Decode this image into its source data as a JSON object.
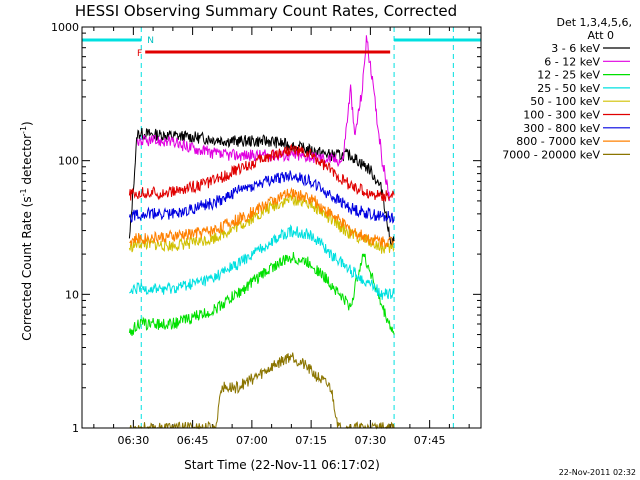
{
  "chart_data": {
    "type": "line",
    "title": "HESSI Observing Summary Count Rates, Corrected",
    "xlabel": "Start Time (22-Nov-11 06:17:02)",
    "ylabel_main": "Corrected Count Rate (s",
    "ylabel_sup1": "-1",
    "ylabel_mid": " detector",
    "ylabel_sup2": "-1",
    "ylabel_end": ")",
    "yscale": "log",
    "ylim": [
      1,
      1000
    ],
    "xlim": [
      "06:17",
      "07:58"
    ],
    "x_tick_labels": [
      "06:30",
      "06:45",
      "07:00",
      "07:15",
      "07:30",
      "07:45"
    ],
    "y_tick_labels": [
      "1",
      "10",
      "100",
      "1000"
    ],
    "legend_header": [
      "Det 1,3,4,5,6,",
      "Att 0"
    ],
    "footer_date": "22-Nov-2011 02:32",
    "markers": {
      "flare": "F",
      "night": "N"
    },
    "series": [
      {
        "name": "3 - 6 keV",
        "color": "#000000",
        "points": [
          [
            "06:29",
            25
          ],
          [
            "06:31",
            160
          ],
          [
            "06:45",
            150
          ],
          [
            "06:55",
            140
          ],
          [
            "07:05",
            140
          ],
          [
            "07:12",
            125
          ],
          [
            "07:20",
            110
          ],
          [
            "07:25",
            110
          ],
          [
            "07:30",
            85
          ],
          [
            "07:33",
            60
          ],
          [
            "07:35",
            25
          ],
          [
            "07:36",
            25
          ]
        ]
      },
      {
        "name": "6 - 12 keV",
        "color": "#e000e0",
        "points": [
          [
            "06:31",
            140
          ],
          [
            "06:38",
            140
          ],
          [
            "06:45",
            125
          ],
          [
            "06:52",
            110
          ],
          [
            "07:00",
            110
          ],
          [
            "07:10",
            110
          ],
          [
            "07:18",
            105
          ],
          [
            "07:23",
            100
          ],
          [
            "07:25",
            350
          ],
          [
            "07:26",
            150
          ],
          [
            "07:28",
            350
          ],
          [
            "07:29",
            850
          ],
          [
            "07:30",
            500
          ],
          [
            "07:31",
            300
          ],
          [
            "07:33",
            100
          ],
          [
            "07:35",
            50
          ]
        ]
      },
      {
        "name": "12 - 25 keV",
        "color": "#00e000",
        "points": [
          [
            "06:29",
            5
          ],
          [
            "06:31",
            6
          ],
          [
            "06:40",
            6
          ],
          [
            "06:50",
            7.5
          ],
          [
            "06:58",
            11
          ],
          [
            "07:05",
            16
          ],
          [
            "07:10",
            19
          ],
          [
            "07:15",
            17
          ],
          [
            "07:20",
            12
          ],
          [
            "07:25",
            8
          ],
          [
            "07:28",
            20
          ],
          [
            "07:30",
            15
          ],
          [
            "07:33",
            8
          ],
          [
            "07:36",
            5
          ]
        ]
      },
      {
        "name": "25 - 50 keV",
        "color": "#00e0e0",
        "points": [
          [
            "06:29",
            10
          ],
          [
            "06:31",
            11
          ],
          [
            "06:40",
            11
          ],
          [
            "06:50",
            13
          ],
          [
            "06:58",
            18
          ],
          [
            "07:05",
            25
          ],
          [
            "07:10",
            30
          ],
          [
            "07:15",
            28
          ],
          [
            "07:20",
            20
          ],
          [
            "07:25",
            15
          ],
          [
            "07:30",
            12
          ],
          [
            "07:33",
            10
          ],
          [
            "07:36",
            10
          ]
        ]
      },
      {
        "name": "50 - 100 keV",
        "color": "#d0c000",
        "points": [
          [
            "06:29",
            22
          ],
          [
            "06:31",
            24
          ],
          [
            "06:40",
            23
          ],
          [
            "06:50",
            26
          ],
          [
            "06:58",
            34
          ],
          [
            "07:05",
            45
          ],
          [
            "07:10",
            52
          ],
          [
            "07:15",
            48
          ],
          [
            "07:20",
            36
          ],
          [
            "07:25",
            28
          ],
          [
            "07:30",
            25
          ],
          [
            "07:33",
            22
          ],
          [
            "07:36",
            22
          ]
        ]
      },
      {
        "name": "100 - 300 keV",
        "color": "#e00000",
        "points": [
          [
            "06:29",
            55
          ],
          [
            "06:31",
            57
          ],
          [
            "06:40",
            58
          ],
          [
            "06:50",
            70
          ],
          [
            "06:58",
            90
          ],
          [
            "07:05",
            110
          ],
          [
            "07:10",
            122
          ],
          [
            "07:15",
            110
          ],
          [
            "07:20",
            85
          ],
          [
            "07:25",
            65
          ],
          [
            "07:30",
            56
          ],
          [
            "07:33",
            55
          ],
          [
            "07:36",
            55
          ]
        ]
      },
      {
        "name": "300 - 800 keV",
        "color": "#0000e0",
        "points": [
          [
            "06:29",
            38
          ],
          [
            "06:31",
            40
          ],
          [
            "06:40",
            40
          ],
          [
            "06:50",
            48
          ],
          [
            "06:58",
            62
          ],
          [
            "07:05",
            72
          ],
          [
            "07:10",
            78
          ],
          [
            "07:15",
            70
          ],
          [
            "07:20",
            55
          ],
          [
            "07:25",
            44
          ],
          [
            "07:30",
            40
          ],
          [
            "07:33",
            38
          ],
          [
            "07:36",
            38
          ]
        ]
      },
      {
        "name": "800 - 7000 keV",
        "color": "#ff8000",
        "points": [
          [
            "06:29",
            25
          ],
          [
            "06:31",
            26
          ],
          [
            "06:40",
            27
          ],
          [
            "06:50",
            30
          ],
          [
            "06:58",
            38
          ],
          [
            "07:05",
            50
          ],
          [
            "07:10",
            57
          ],
          [
            "07:15",
            52
          ],
          [
            "07:20",
            40
          ],
          [
            "07:25",
            30
          ],
          [
            "07:30",
            26
          ],
          [
            "07:33",
            25
          ],
          [
            "07:36",
            25
          ]
        ]
      },
      {
        "name": "7000 - 20000 keV",
        "color": "#8b7500",
        "points": [
          [
            "06:29",
            1
          ],
          [
            "06:51",
            1
          ],
          [
            "06:52",
            2
          ],
          [
            "06:56",
            2
          ],
          [
            "07:02",
            2.5
          ],
          [
            "07:06",
            3
          ],
          [
            "07:10",
            3.5
          ],
          [
            "07:13",
            3
          ],
          [
            "07:16",
            2.5
          ],
          [
            "07:20",
            2
          ],
          [
            "07:22",
            1
          ],
          [
            "07:36",
            1
          ]
        ]
      }
    ],
    "bars": [
      {
        "name": "flare",
        "color": "#e00000",
        "y": 650,
        "start": "06:33",
        "end": "07:35"
      },
      {
        "name": "night",
        "color": "#00e0e0",
        "y": 800,
        "start": "06:17",
        "end": "06:32"
      },
      {
        "name": "night",
        "color": "#00e0e0",
        "y": 800,
        "start": "07:36",
        "end": "07:58"
      }
    ],
    "vlines": [
      "06:32",
      "07:36",
      "07:51"
    ]
  }
}
